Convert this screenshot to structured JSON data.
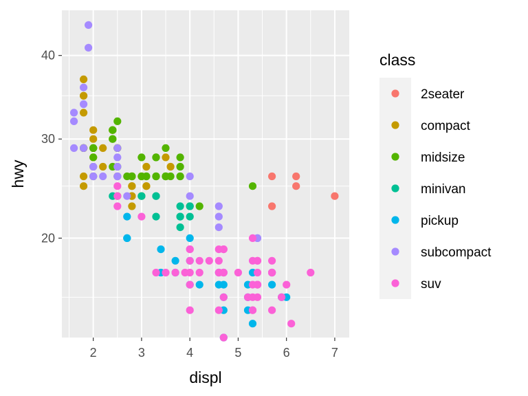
{
  "chart_data": {
    "type": "scatter",
    "xlabel": "displ",
    "ylabel": "hwy",
    "x_ticks": [
      2,
      3,
      4,
      5,
      6,
      7
    ],
    "y_ticks": [
      20,
      30,
      40
    ],
    "y_minor_ticks": [
      15,
      25,
      35
    ],
    "xlim": [
      1.35,
      7.3
    ],
    "ylim": [
      12,
      46
    ],
    "grid": true,
    "legend": {
      "title": "class",
      "position": "right",
      "entries": [
        "2seater",
        "compact",
        "midsize",
        "minivan",
        "pickup",
        "subcompact",
        "suv"
      ]
    },
    "colors": {
      "2seater": "#F8766D",
      "compact": "#C49A00",
      "midsize": "#53B400",
      "minivan": "#00C094",
      "pickup": "#00B6EB",
      "subcompact": "#A58AFF",
      "suv": "#FB61D7"
    },
    "series": [
      {
        "name": "2seater",
        "points": [
          [
            5.7,
            26
          ],
          [
            5.7,
            23
          ],
          [
            6.2,
            26
          ],
          [
            6.2,
            25
          ],
          [
            7.0,
            24
          ]
        ]
      },
      {
        "name": "compact",
        "points": [
          [
            1.8,
            29
          ],
          [
            1.8,
            29
          ],
          [
            2.0,
            31
          ],
          [
            2.0,
            30
          ],
          [
            2.8,
            26
          ],
          [
            2.8,
            26
          ],
          [
            3.1,
            27
          ],
          [
            1.8,
            26
          ],
          [
            1.8,
            25
          ],
          [
            2.0,
            28
          ],
          [
            2.0,
            27
          ],
          [
            2.8,
            25
          ],
          [
            2.8,
            25
          ],
          [
            3.1,
            25
          ],
          [
            3.1,
            25
          ],
          [
            2.2,
            29
          ],
          [
            2.2,
            27
          ],
          [
            2.4,
            31
          ],
          [
            2.4,
            31
          ],
          [
            3.0,
            26
          ],
          [
            3.0,
            26
          ],
          [
            3.5,
            28
          ],
          [
            1.8,
            33
          ],
          [
            1.8,
            35
          ],
          [
            1.8,
            37
          ],
          [
            1.8,
            35
          ],
          [
            2.0,
            29
          ],
          [
            2.0,
            26
          ],
          [
            2.5,
            29
          ],
          [
            2.5,
            29
          ],
          [
            2.8,
            24
          ],
          [
            2.5,
            26
          ],
          [
            2.5,
            26
          ],
          [
            2.8,
            23
          ],
          [
            2.8,
            24
          ],
          [
            3.6,
            27
          ],
          [
            2.0,
            29
          ],
          [
            1.8,
            29
          ]
        ]
      },
      {
        "name": "midsize",
        "points": [
          [
            2.4,
            30
          ],
          [
            3.1,
            26
          ],
          [
            3.5,
            29
          ],
          [
            3.5,
            26
          ],
          [
            3.3,
            26
          ],
          [
            3.3,
            28
          ],
          [
            3.8,
            28
          ],
          [
            3.8,
            27
          ],
          [
            3.8,
            26
          ],
          [
            2.5,
            29
          ],
          [
            2.5,
            32
          ],
          [
            3.3,
            28
          ],
          [
            2.0,
            29
          ],
          [
            2.0,
            29
          ],
          [
            1.8,
            29
          ],
          [
            2.0,
            28
          ],
          [
            2.7,
            26
          ],
          [
            3.5,
            26
          ],
          [
            3.6,
            26
          ],
          [
            2.5,
            27
          ],
          [
            4.2,
            23
          ],
          [
            2.4,
            30
          ],
          [
            2.4,
            31
          ],
          [
            2.8,
            26
          ],
          [
            2.8,
            26
          ],
          [
            3.0,
            28
          ],
          [
            3.3,
            26
          ],
          [
            5.3,
            25
          ],
          [
            4.0,
            23
          ],
          [
            3.8,
            26
          ],
          [
            3.0,
            26
          ],
          [
            2.0,
            26
          ],
          [
            2.0,
            29
          ],
          [
            3.1,
            26
          ],
          [
            2.4,
            27
          ],
          [
            2.4,
            31
          ],
          [
            3.5,
            26
          ],
          [
            3.5,
            26
          ],
          [
            3.3,
            26
          ],
          [
            3.0,
            24
          ],
          [
            2.5,
            24
          ]
        ]
      },
      {
        "name": "minivan",
        "points": [
          [
            2.4,
            24
          ],
          [
            3.0,
            24
          ],
          [
            3.3,
            22
          ],
          [
            3.3,
            24
          ],
          [
            3.8,
            23
          ],
          [
            3.8,
            21
          ],
          [
            3.8,
            22
          ],
          [
            4.0,
            23
          ],
          [
            3.3,
            24
          ],
          [
            3.8,
            22
          ],
          [
            4.0,
            22
          ]
        ]
      },
      {
        "name": "pickup",
        "points": [
          [
            2.7,
            20
          ],
          [
            2.7,
            20
          ],
          [
            2.7,
            22
          ],
          [
            3.4,
            17
          ],
          [
            3.4,
            19
          ],
          [
            3.7,
            18
          ],
          [
            4.0,
            20
          ],
          [
            4.0,
            16
          ],
          [
            4.2,
            16
          ],
          [
            4.6,
            17
          ],
          [
            4.7,
            17
          ],
          [
            4.7,
            16
          ],
          [
            4.7,
            15
          ],
          [
            4.7,
            12
          ],
          [
            5.2,
            15
          ],
          [
            5.2,
            16
          ],
          [
            5.2,
            14
          ],
          [
            5.3,
            17
          ],
          [
            5.7,
            17
          ],
          [
            5.9,
            15
          ],
          [
            5.7,
            16
          ],
          [
            6.0,
            15
          ],
          [
            5.3,
            13
          ],
          [
            4.7,
            14
          ],
          [
            4.0,
            18
          ],
          [
            3.7,
            17
          ],
          [
            4.6,
            16
          ]
        ]
      },
      {
        "name": "subcompact",
        "points": [
          [
            1.8,
            36
          ],
          [
            1.8,
            34
          ],
          [
            1.6,
            33
          ],
          [
            1.6,
            32
          ],
          [
            1.6,
            29
          ],
          [
            1.8,
            29
          ],
          [
            1.9,
            41
          ],
          [
            1.9,
            44
          ],
          [
            2.0,
            27
          ],
          [
            2.0,
            26
          ],
          [
            2.2,
            26
          ],
          [
            2.0,
            27
          ],
          [
            2.5,
            27
          ],
          [
            2.5,
            29
          ],
          [
            2.5,
            28
          ],
          [
            2.5,
            26
          ],
          [
            2.5,
            26
          ],
          [
            4.0,
            26
          ],
          [
            4.0,
            24
          ],
          [
            4.6,
            23
          ],
          [
            4.6,
            22
          ],
          [
            5.4,
            20
          ],
          [
            5.4,
            20
          ],
          [
            4.6,
            21
          ],
          [
            2.0,
            26
          ],
          [
            2.7,
            24
          ]
        ]
      },
      {
        "name": "suv",
        "points": [
          [
            2.5,
            24
          ],
          [
            2.5,
            23
          ],
          [
            3.0,
            22
          ],
          [
            4.0,
            18
          ],
          [
            3.7,
            17
          ],
          [
            3.9,
            17
          ],
          [
            4.7,
            17
          ],
          [
            4.7,
            19
          ],
          [
            5.2,
            15
          ],
          [
            5.7,
            17
          ],
          [
            5.9,
            15
          ],
          [
            4.6,
            17
          ],
          [
            5.4,
            17
          ],
          [
            5.4,
            16
          ],
          [
            5.3,
            20
          ],
          [
            5.3,
            15
          ],
          [
            5.3,
            14
          ],
          [
            5.7,
            17
          ],
          [
            6.5,
            17
          ],
          [
            5.3,
            14
          ],
          [
            5.3,
            16
          ],
          [
            5.7,
            17
          ],
          [
            6.0,
            16
          ],
          [
            4.0,
            16
          ],
          [
            4.0,
            19
          ],
          [
            4.6,
            17
          ],
          [
            5.0,
            17
          ],
          [
            4.2,
            17
          ],
          [
            4.4,
            18
          ],
          [
            4.6,
            19
          ],
          [
            5.4,
            18
          ],
          [
            5.4,
            18
          ],
          [
            4.0,
            14
          ],
          [
            4.6,
            14
          ],
          [
            5.4,
            16
          ],
          [
            5.4,
            16
          ],
          [
            4.7,
            12
          ],
          [
            3.3,
            17
          ],
          [
            3.5,
            17
          ],
          [
            4.0,
            19
          ],
          [
            4.6,
            18
          ],
          [
            5.4,
            15
          ],
          [
            6.1,
            13
          ],
          [
            4.7,
            19
          ],
          [
            4.7,
            15
          ],
          [
            5.7,
            18
          ],
          [
            2.5,
            25
          ],
          [
            4.7,
            17
          ],
          [
            4.0,
            17
          ],
          [
            5.3,
            18
          ],
          [
            4.2,
            18
          ],
          [
            5.7,
            14
          ]
        ]
      }
    ]
  }
}
